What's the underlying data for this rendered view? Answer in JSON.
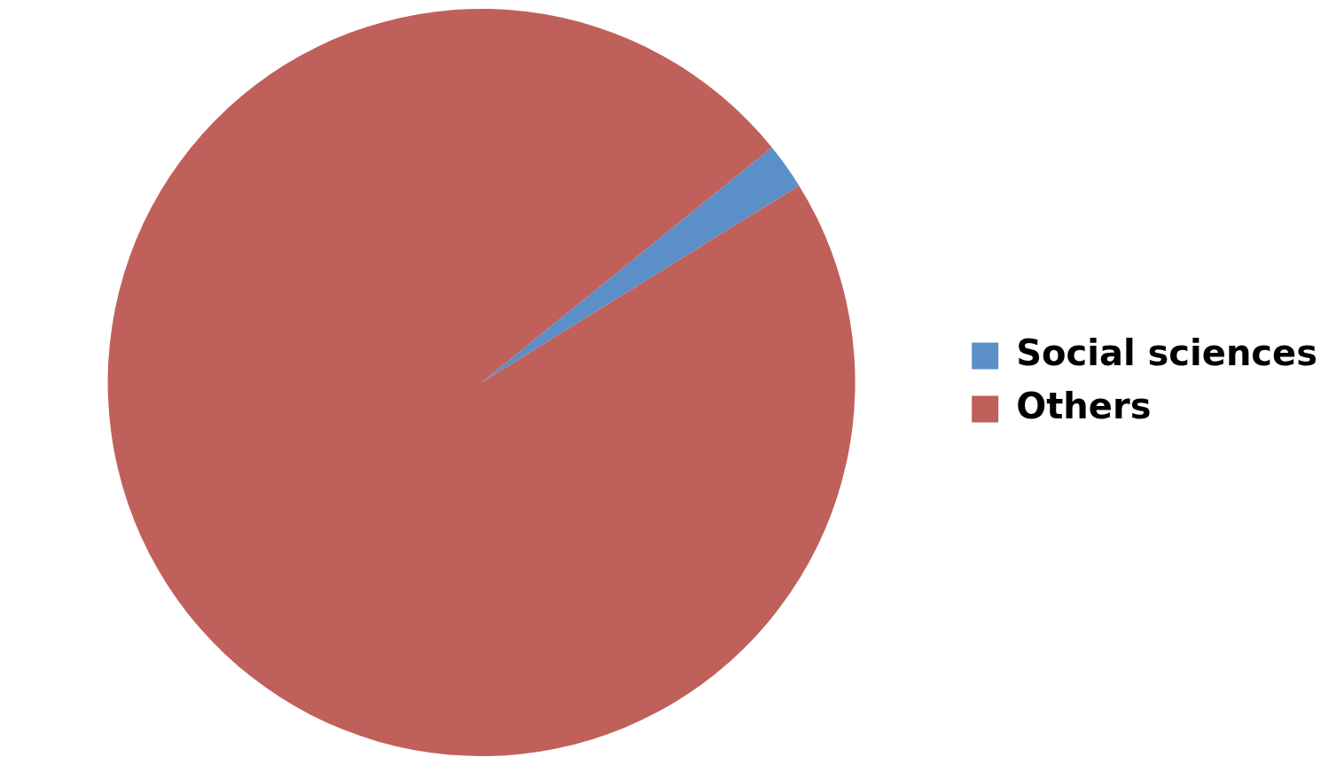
{
  "chart_data": {
    "type": "pie",
    "categories": [
      "Social sciences",
      "Others"
    ],
    "values": [
      2,
      98
    ],
    "colors": [
      "#5b8fc8",
      "#c0605a"
    ],
    "legend": "right"
  }
}
